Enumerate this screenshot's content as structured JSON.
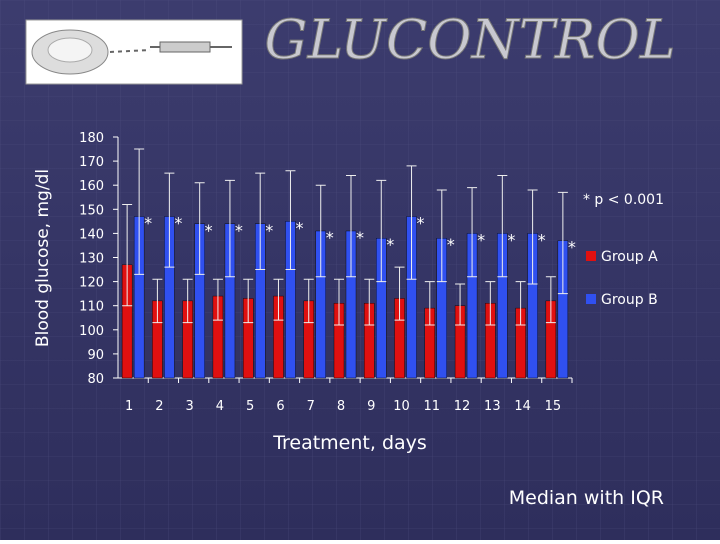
{
  "chart_data": {
    "type": "bar",
    "title": "GLUCONTROL",
    "x_label": "Treatment, days",
    "y_label": "Blood glucose, mg/dl",
    "categories": [
      "1",
      "2",
      "3",
      "4",
      "5",
      "6",
      "7",
      "8",
      "9",
      "10",
      "11",
      "12",
      "13",
      "14",
      "15"
    ],
    "series": [
      {
        "name": "Group A",
        "color": "#e01010",
        "values": [
          127,
          112,
          112,
          114,
          113,
          114,
          112,
          111,
          111,
          113,
          109,
          110,
          111,
          109,
          112
        ],
        "q1": [
          110,
          103,
          103,
          104,
          103,
          104,
          103,
          102,
          102,
          104,
          102,
          102,
          102,
          102,
          103
        ],
        "q3": [
          152,
          121,
          121,
          121,
          121,
          121,
          121,
          121,
          121,
          126,
          120,
          119,
          120,
          120,
          122
        ]
      },
      {
        "name": "Group B",
        "color": "#3050f0",
        "values": [
          147,
          147,
          144,
          144,
          144,
          145,
          141,
          141,
          138,
          147,
          138,
          140,
          140,
          140,
          137
        ],
        "q1": [
          123,
          126,
          123,
          122,
          125,
          125,
          122,
          122,
          120,
          121,
          120,
          122,
          122,
          119,
          115
        ],
        "q3": [
          175,
          165,
          161,
          162,
          165,
          166,
          160,
          164,
          162,
          168,
          158,
          159,
          164,
          158,
          157
        ]
      }
    ],
    "significance": [
      "*",
      "*",
      "*",
      "*",
      "*",
      "*",
      "*",
      "*",
      "*",
      "*",
      "*",
      "*",
      "*",
      "*",
      "*"
    ],
    "significance_note": "* p < 0.001",
    "footnote": "Median with IQR",
    "ylim": [
      80,
      180
    ],
    "yticks": [
      80,
      90,
      100,
      110,
      120,
      130,
      140,
      150,
      160,
      170,
      180
    ]
  }
}
